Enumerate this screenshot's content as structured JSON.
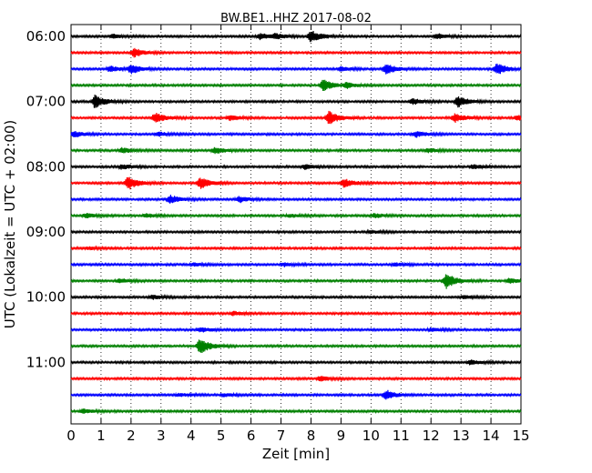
{
  "chart_data": {
    "type": "line",
    "title": "BW.BE1..HHZ 2017-08-02",
    "xlabel": "Zeit  [min]",
    "ylabel": "UTC (Lokalzeit = UTC + 02:00)",
    "xlim": [
      0,
      15
    ],
    "x_ticks": [
      "0",
      "1",
      "2",
      "3",
      "4",
      "5",
      "6",
      "7",
      "8",
      "9",
      "10",
      "11",
      "12",
      "13",
      "14",
      "15"
    ],
    "y_tick_labels": [
      {
        "row": 0,
        "label": "06:00"
      },
      {
        "row": 4,
        "label": "07:00"
      },
      {
        "row": 8,
        "label": "08:00"
      },
      {
        "row": 12,
        "label": "09:00"
      },
      {
        "row": 16,
        "label": "10:00"
      },
      {
        "row": 20,
        "label": "11:00"
      }
    ],
    "row_interval_minutes": 15,
    "row_count": 24,
    "grid": "vertical-dotted",
    "series_colors": [
      "#000000",
      "#ff0000",
      "#0000ff",
      "#008000"
    ],
    "events": [
      [
        {
          "t": 1.4,
          "a": 0.5
        },
        {
          "t": 6.3,
          "a": 0.7
        },
        {
          "t": 6.8,
          "a": 0.6
        },
        {
          "t": 8.0,
          "a": 1.4
        },
        {
          "t": 12.2,
          "a": 0.6
        }
      ],
      [
        {
          "t": 2.1,
          "a": 1.0
        }
      ],
      [
        {
          "t": 1.3,
          "a": 0.7
        },
        {
          "t": 2.0,
          "a": 1.1
        },
        {
          "t": 9.0,
          "a": 0.5
        },
        {
          "t": 10.5,
          "a": 1.2
        },
        {
          "t": 14.2,
          "a": 1.4
        }
      ],
      [
        {
          "t": 8.4,
          "a": 1.4
        },
        {
          "t": 9.2,
          "a": 0.6
        }
      ],
      [
        {
          "t": 0.8,
          "a": 1.6
        },
        {
          "t": 11.4,
          "a": 0.7
        },
        {
          "t": 12.9,
          "a": 1.3
        }
      ],
      [
        {
          "t": 2.8,
          "a": 1.2
        },
        {
          "t": 5.3,
          "a": 0.6
        },
        {
          "t": 8.6,
          "a": 1.6
        },
        {
          "t": 12.8,
          "a": 1.0
        },
        {
          "t": 14.9,
          "a": 0.6
        }
      ],
      [
        {
          "t": 0.1,
          "a": 0.7
        },
        {
          "t": 2.9,
          "a": 0.5
        },
        {
          "t": 11.5,
          "a": 0.7
        }
      ],
      [
        {
          "t": 1.7,
          "a": 0.6
        },
        {
          "t": 4.8,
          "a": 0.8
        },
        {
          "t": 11.9,
          "a": 0.5
        }
      ],
      [
        {
          "t": 1.7,
          "a": 0.6
        },
        {
          "t": 7.8,
          "a": 0.6
        },
        {
          "t": 13.4,
          "a": 0.5
        }
      ],
      [
        {
          "t": 1.9,
          "a": 1.7
        },
        {
          "t": 4.3,
          "a": 1.4
        },
        {
          "t": 9.1,
          "a": 1.0
        }
      ],
      [
        {
          "t": 3.3,
          "a": 1.0
        },
        {
          "t": 5.6,
          "a": 0.8
        }
      ],
      [
        {
          "t": 0.5,
          "a": 0.5
        },
        {
          "t": 2.5,
          "a": 0.5
        },
        {
          "t": 7.3,
          "a": 0.4
        },
        {
          "t": 10.1,
          "a": 0.5
        }
      ],
      [
        {
          "t": 10.0,
          "a": 0.4
        }
      ],
      [
        {
          "t": 0.6,
          "a": 0.3
        }
      ],
      [
        {
          "t": 4.1,
          "a": 0.4
        },
        {
          "t": 7.1,
          "a": 0.4
        },
        {
          "t": 10.8,
          "a": 0.4
        }
      ],
      [
        {
          "t": 1.6,
          "a": 0.5
        },
        {
          "t": 12.5,
          "a": 1.8
        },
        {
          "t": 14.6,
          "a": 0.6
        }
      ],
      [
        {
          "t": 2.7,
          "a": 0.5
        },
        {
          "t": 13.1,
          "a": 0.4
        }
      ],
      [
        {
          "t": 5.4,
          "a": 0.5
        }
      ],
      [
        {
          "t": 4.3,
          "a": 0.6
        },
        {
          "t": 12.0,
          "a": 0.4
        }
      ],
      [
        {
          "t": 4.3,
          "a": 1.9
        }
      ],
      [
        {
          "t": 13.3,
          "a": 0.5
        }
      ],
      [
        {
          "t": 8.3,
          "a": 0.6
        }
      ],
      [
        {
          "t": 3.6,
          "a": 0.4
        },
        {
          "t": 5.1,
          "a": 0.4
        },
        {
          "t": 10.5,
          "a": 1.2
        }
      ],
      [
        {
          "t": 0.4,
          "a": 0.5
        }
      ]
    ]
  }
}
